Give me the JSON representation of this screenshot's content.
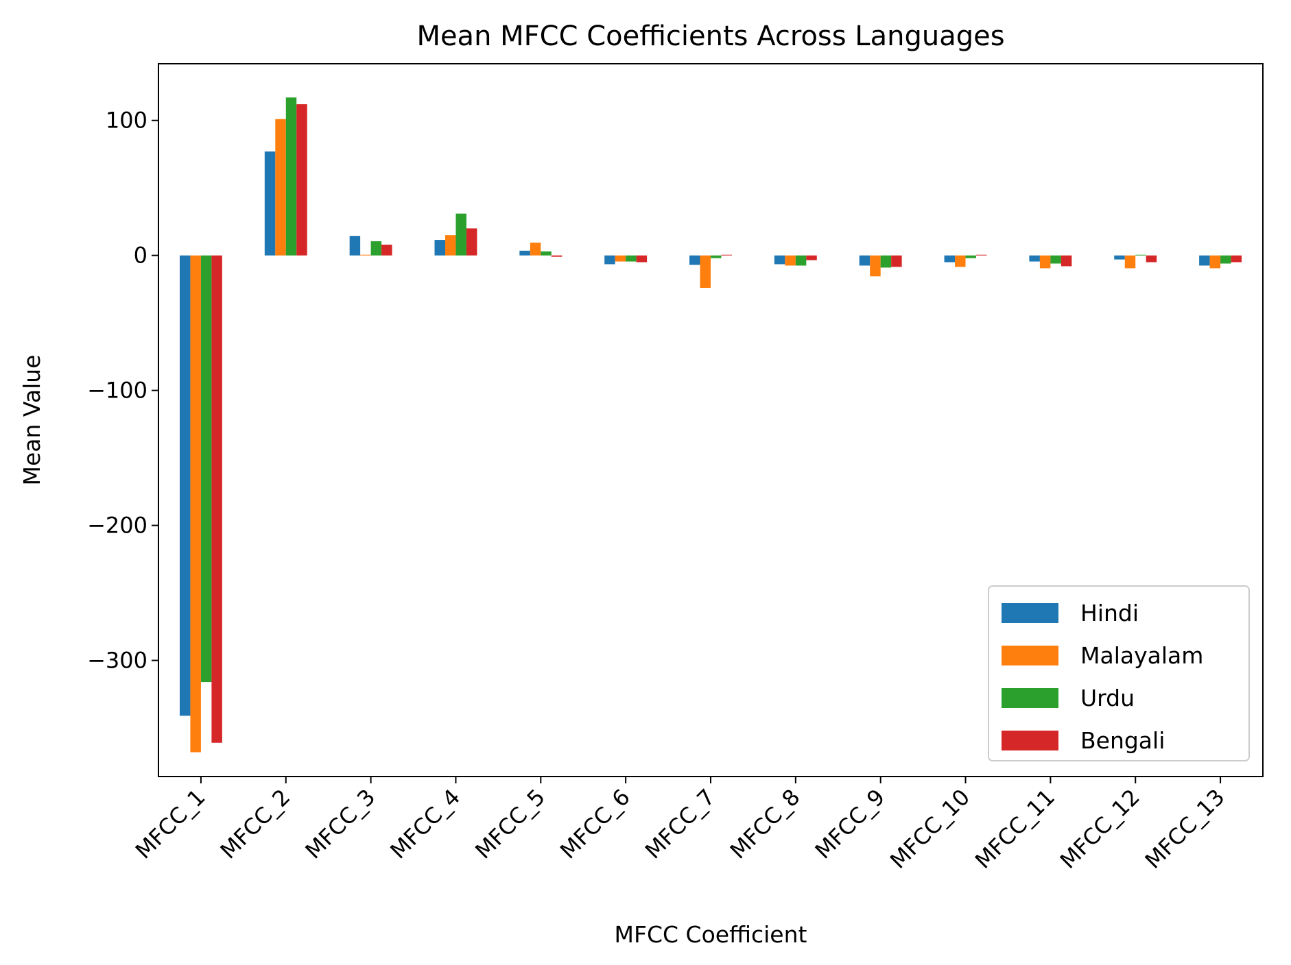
{
  "chart_data": {
    "type": "bar",
    "title": "Mean MFCC Coefficients Across Languages",
    "xlabel": "MFCC Coefficient",
    "ylabel": "Mean Value",
    "ylim": [
      -386,
      142
    ],
    "yticks": [
      100,
      0,
      -100,
      -200,
      -300
    ],
    "ytick_labels": [
      "100",
      "0",
      "−100",
      "−200",
      "−300"
    ],
    "categories": [
      "MFCC_1",
      "MFCC_2",
      "MFCC_3",
      "MFCC_4",
      "MFCC_5",
      "MFCC_6",
      "MFCC_7",
      "MFCC_8",
      "MFCC_9",
      "MFCC_10",
      "MFCC_11",
      "MFCC_12",
      "MFCC_13"
    ],
    "series": [
      {
        "name": "Hindi",
        "color": "#1f77b4",
        "values": [
          -341,
          77,
          14.5,
          11.5,
          3.5,
          -6.5,
          -7,
          -6.5,
          -7.5,
          -5,
          -4.5,
          -3,
          -7.5
        ]
      },
      {
        "name": "Malayalam",
        "color": "#ff7f0e",
        "values": [
          -368,
          101,
          0.5,
          15,
          9.5,
          -4.5,
          -24,
          -7.5,
          -15.5,
          -8.5,
          -9.5,
          -9.5,
          -9.5
        ]
      },
      {
        "name": "Urdu",
        "color": "#2ca02c",
        "values": [
          -316,
          117,
          10.5,
          31,
          3,
          -4.5,
          -2,
          -7.5,
          -9,
          -2,
          -6,
          0.5,
          -6
        ]
      },
      {
        "name": "Bengali",
        "color": "#d62728",
        "values": [
          -361,
          112,
          8,
          20,
          -1,
          -5,
          0.5,
          -3.5,
          -8.5,
          0.5,
          -8,
          -5,
          -5
        ]
      }
    ],
    "legend_position": "bottom-right",
    "grid": false
  }
}
